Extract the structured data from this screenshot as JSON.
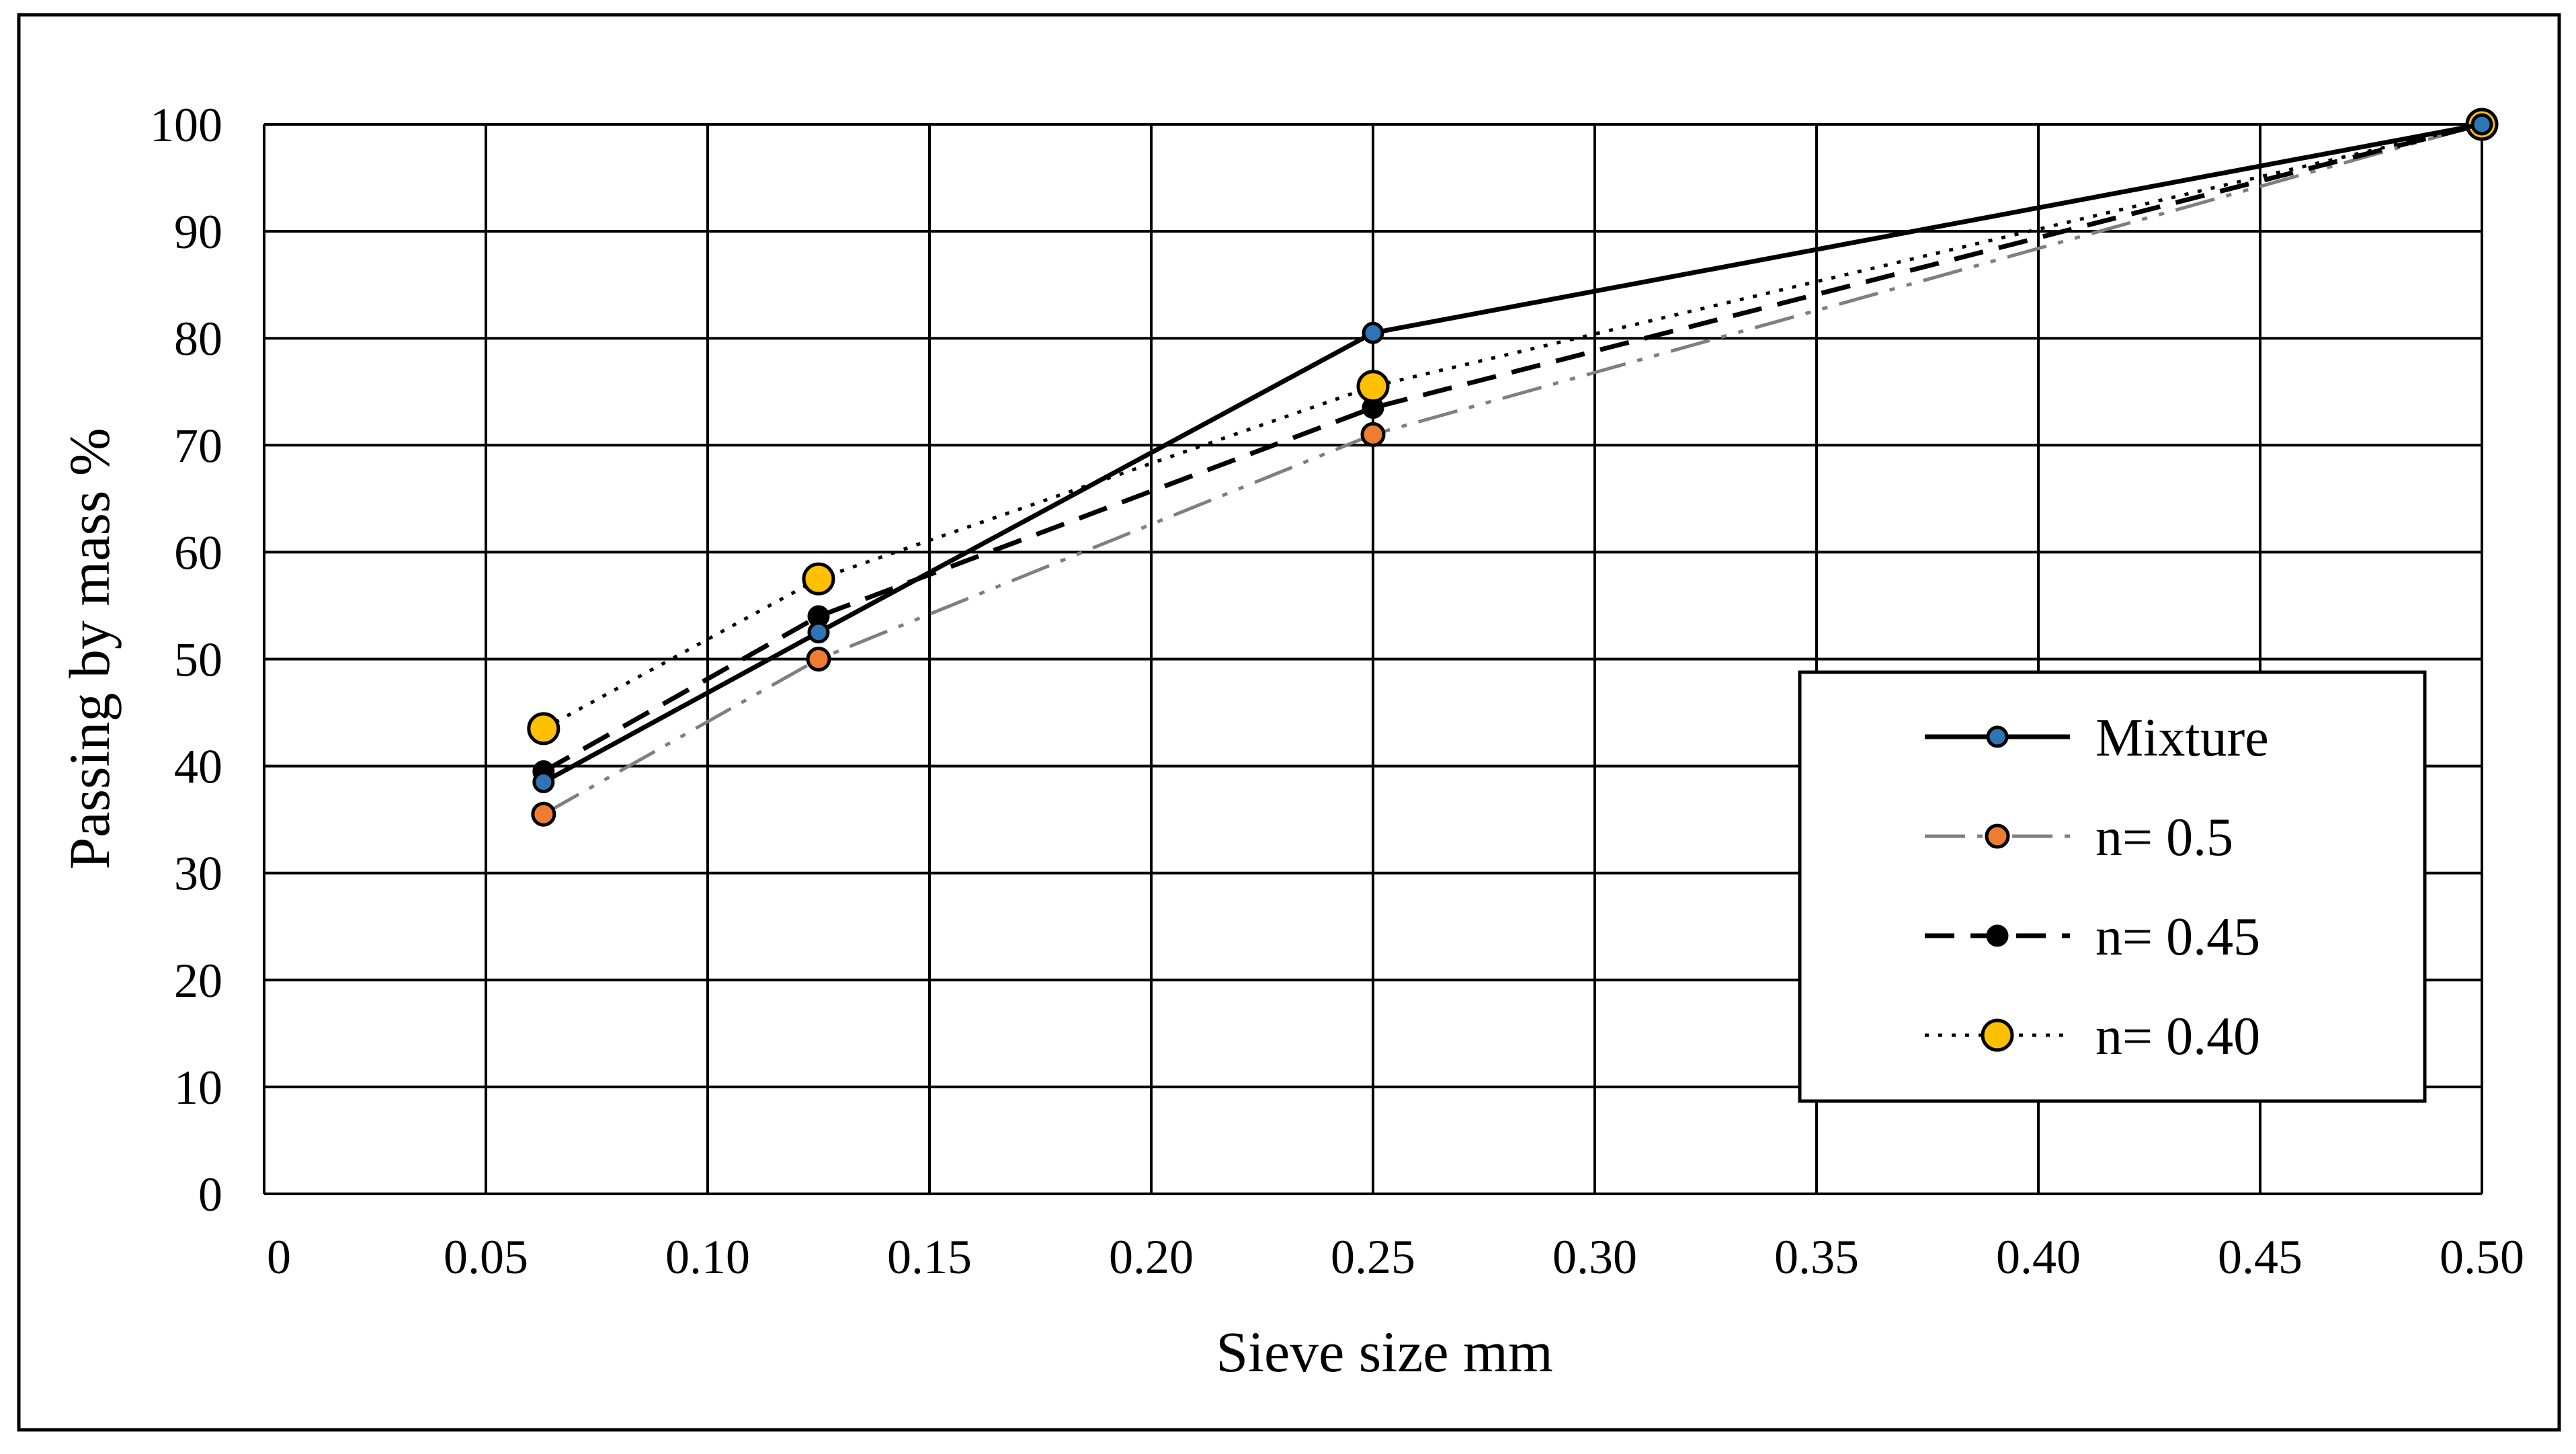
{
  "chart_data": {
    "type": "line",
    "title": "",
    "xlabel": "Sieve size mm",
    "ylabel": "Passing by mass %",
    "xlim": [
      0,
      0.5
    ],
    "ylim": [
      0,
      100
    ],
    "x_ticks": [
      0,
      0.05,
      0.1,
      0.15,
      0.2,
      0.25,
      0.3,
      0.35,
      0.4,
      0.45,
      0.5
    ],
    "x_tick_labels": [
      "0",
      "0.05",
      "0.10",
      "0.15",
      "0.20",
      "0.25",
      "0.30",
      "0.35",
      "0.40",
      "0.45",
      "0.50"
    ],
    "y_ticks": [
      0,
      10,
      20,
      30,
      40,
      50,
      60,
      70,
      80,
      90,
      100
    ],
    "y_tick_labels": [
      "0",
      "10",
      "20",
      "30",
      "40",
      "50",
      "60",
      "70",
      "80",
      "90",
      "100"
    ],
    "grid": true,
    "legend_position": "bottom-right",
    "series": [
      {
        "name": "Mixture",
        "x": [
          0.063,
          0.125,
          0.25,
          0.5
        ],
        "values": [
          38.5,
          52.5,
          80.5,
          100
        ],
        "line_color": "#000000",
        "line_style": "solid",
        "marker_color": "#2e75b6",
        "marker": "small-circle"
      },
      {
        "name": "n= 0.5",
        "x": [
          0.063,
          0.125,
          0.25,
          0.5
        ],
        "values": [
          35.5,
          50,
          71,
          100
        ],
        "line_color": "#7f7f7f",
        "line_style": "long-dash-dot-dot",
        "marker_color": "#ed7d31",
        "marker": "circle"
      },
      {
        "name": "n= 0.45",
        "x": [
          0.063,
          0.125,
          0.25,
          0.5
        ],
        "values": [
          39.5,
          54,
          73.5,
          100
        ],
        "line_color": "#000000",
        "line_style": "dashed",
        "marker_color": "#000000",
        "marker": "small-circle"
      },
      {
        "name": "n= 0.40",
        "x": [
          0.063,
          0.125,
          0.25,
          0.5
        ],
        "values": [
          43.5,
          57.5,
          75.5,
          100
        ],
        "line_color": "#000000",
        "line_style": "dotted",
        "marker_color": "#ffc000",
        "marker": "large-circle"
      }
    ]
  }
}
